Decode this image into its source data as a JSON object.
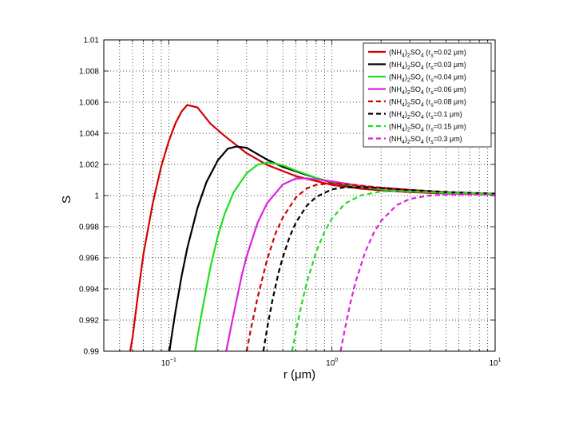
{
  "chart_data": {
    "type": "line",
    "xlabel": "r (μm)",
    "ylabel": "S",
    "xscale": "log",
    "xlim": [
      0.04,
      10
    ],
    "ylim": [
      0.99,
      1.01
    ],
    "grid": true,
    "legend_position": "top-right",
    "x_ticks": [
      {
        "value": 0.1,
        "base": "10",
        "exp": "−1"
      },
      {
        "value": 1,
        "base": "10",
        "exp": "0"
      },
      {
        "value": 10,
        "base": "10",
        "exp": "1"
      }
    ],
    "y_ticks": [
      "0.99",
      "0.992",
      "0.994",
      "0.996",
      "0.998",
      "1",
      "1.002",
      "1.004",
      "1.006",
      "1.008",
      "1.01"
    ],
    "series": [
      {
        "name": "(NH4)2SO4 (rs=0.02 μm)",
        "rs": "0.02",
        "rs_value": 0.02,
        "color": "#d40000",
        "dash": "solid",
        "x": [
          0.058,
          0.06,
          0.065,
          0.07,
          0.08,
          0.09,
          0.1,
          0.11,
          0.12,
          0.13,
          0.15,
          0.18,
          0.22,
          0.3,
          0.4,
          0.6,
          1.0,
          1.5,
          2,
          3,
          5,
          10
        ],
        "y": [
          0.99,
          0.99087,
          0.99377,
          0.99626,
          0.99956,
          1.00189,
          1.00349,
          1.00465,
          1.00541,
          1.00582,
          1.00566,
          1.00462,
          1.00383,
          1.00272,
          1.00197,
          1.00125,
          1.00068,
          1.00044,
          1.00033,
          1.00022,
          1.00013,
          1.00007
        ]
      },
      {
        "name": "(NH4)2SO4 (rs=0.03 μm)",
        "rs": "0.03",
        "rs_value": 0.03,
        "color": "#000000",
        "dash": "solid",
        "x": [
          0.101,
          0.105,
          0.11,
          0.12,
          0.13,
          0.15,
          0.17,
          0.2,
          0.23,
          0.26,
          0.3,
          0.4,
          0.5,
          0.7,
          1.0,
          1.5,
          2,
          3,
          5,
          10
        ],
        "y": [
          0.99,
          0.99121,
          0.99257,
          0.99485,
          0.99664,
          0.9992,
          1.00085,
          1.00227,
          1.00301,
          1.00315,
          1.00307,
          1.00231,
          1.00184,
          1.00132,
          1.00082,
          1.00053,
          1.0004,
          1.00026,
          1.00016,
          1.00008
        ]
      },
      {
        "name": "(NH4)2SO4 (rs=0.04 μm)",
        "rs": "0.04",
        "rs_value": 0.04,
        "color": "#22dd22",
        "dash": "solid",
        "x": [
          0.145,
          0.15,
          0.16,
          0.18,
          0.2,
          0.22,
          0.25,
          0.3,
          0.35,
          0.4,
          0.45,
          0.5,
          0.6,
          0.8,
          1.0,
          1.5,
          2,
          3,
          5,
          10
        ],
        "y": [
          0.99,
          0.99092,
          0.99258,
          0.99539,
          0.99741,
          0.99882,
          1.00022,
          1.00143,
          1.00198,
          1.00211,
          1.00206,
          1.00194,
          1.00161,
          1.00114,
          1.00087,
          1.00055,
          1.00041,
          1.00027,
          1.00016,
          1.00008
        ]
      },
      {
        "name": "(NH4)2SO4 (rs=0.06 μm)",
        "rs": "0.06",
        "rs_value": 0.06,
        "color": "#dd22dd",
        "dash": "solid",
        "x": [
          0.225,
          0.24,
          0.26,
          0.28,
          0.3,
          0.35,
          0.4,
          0.5,
          0.6,
          0.7,
          0.8,
          1.0,
          1.5,
          2,
          3,
          5,
          10
        ],
        "y": [
          0.99,
          0.99149,
          0.99326,
          0.99486,
          0.99609,
          0.99824,
          0.9995,
          1.00071,
          1.00109,
          1.0011,
          1.00104,
          1.00091,
          1.00062,
          1.00047,
          1.00032,
          1.00019,
          1.0001
        ]
      },
      {
        "name": "(NH4)2SO4 (rs=0.08 μm)",
        "rs": "0.08",
        "rs_value": 0.08,
        "color": "#d40000",
        "dash": "dashed",
        "x": [
          0.3,
          0.32,
          0.35,
          0.4,
          0.45,
          0.5,
          0.6,
          0.7,
          0.8,
          1.0,
          1.2,
          1.5,
          2,
          3,
          5,
          10
        ],
        "y": [
          0.99,
          0.99152,
          0.99343,
          0.99586,
          0.99754,
          0.99859,
          0.99987,
          1.00045,
          1.00069,
          1.00079,
          1.00074,
          1.00064,
          1.00051,
          1.00036,
          1.00022,
          1.00011
        ]
      },
      {
        "name": "(NH4)2SO4 (rs=0.1 μm)",
        "rs": "0.1",
        "rs_value": 0.1,
        "color": "#000000",
        "dash": "dashed",
        "x": [
          0.38,
          0.4,
          0.43,
          0.47,
          0.5,
          0.55,
          0.6,
          0.7,
          0.8,
          1.0,
          1.2,
          1.5,
          2,
          3,
          5,
          10
        ],
        "y": [
          0.99,
          0.99142,
          0.99318,
          0.99502,
          0.99603,
          0.99734,
          0.99825,
          0.99934,
          0.99991,
          1.0004,
          1.00053,
          1.00055,
          1.00049,
          1.00036,
          1.00023,
          1.00012
        ]
      },
      {
        "name": "(NH4)2SO4 (rs=0.15 μm)",
        "rs": "0.15",
        "rs_value": 0.15,
        "color": "#22dd22",
        "dash": "dashed",
        "x": [
          0.57,
          0.6,
          0.65,
          0.7,
          0.8,
          0.9,
          1.0,
          1.2,
          1.5,
          2,
          2.5,
          3,
          4,
          5,
          7,
          10
        ],
        "y": [
          0.99,
          0.99124,
          0.99297,
          0.99437,
          0.99638,
          0.99767,
          0.99852,
          0.99948,
          1.00001,
          1.00026,
          1.00029,
          1.00027,
          1.00022,
          1.00019,
          1.00014,
          1.0001
        ]
      },
      {
        "name": "(NH4)2SO4 (rs=0.3 μm)",
        "rs": "0.3",
        "rs_value": 0.3,
        "color": "#dd22dd",
        "dash": "dashed",
        "x": [
          1.13,
          1.2,
          1.3,
          1.4,
          1.6,
          1.8,
          2.0,
          2.5,
          3,
          4,
          5,
          7,
          10
        ],
        "y": [
          0.99,
          0.99142,
          0.99315,
          0.99449,
          0.99638,
          0.99759,
          0.99837,
          0.99939,
          0.99978,
          1.00001,
          1.00006,
          1.00006,
          1.00005
        ]
      }
    ]
  }
}
